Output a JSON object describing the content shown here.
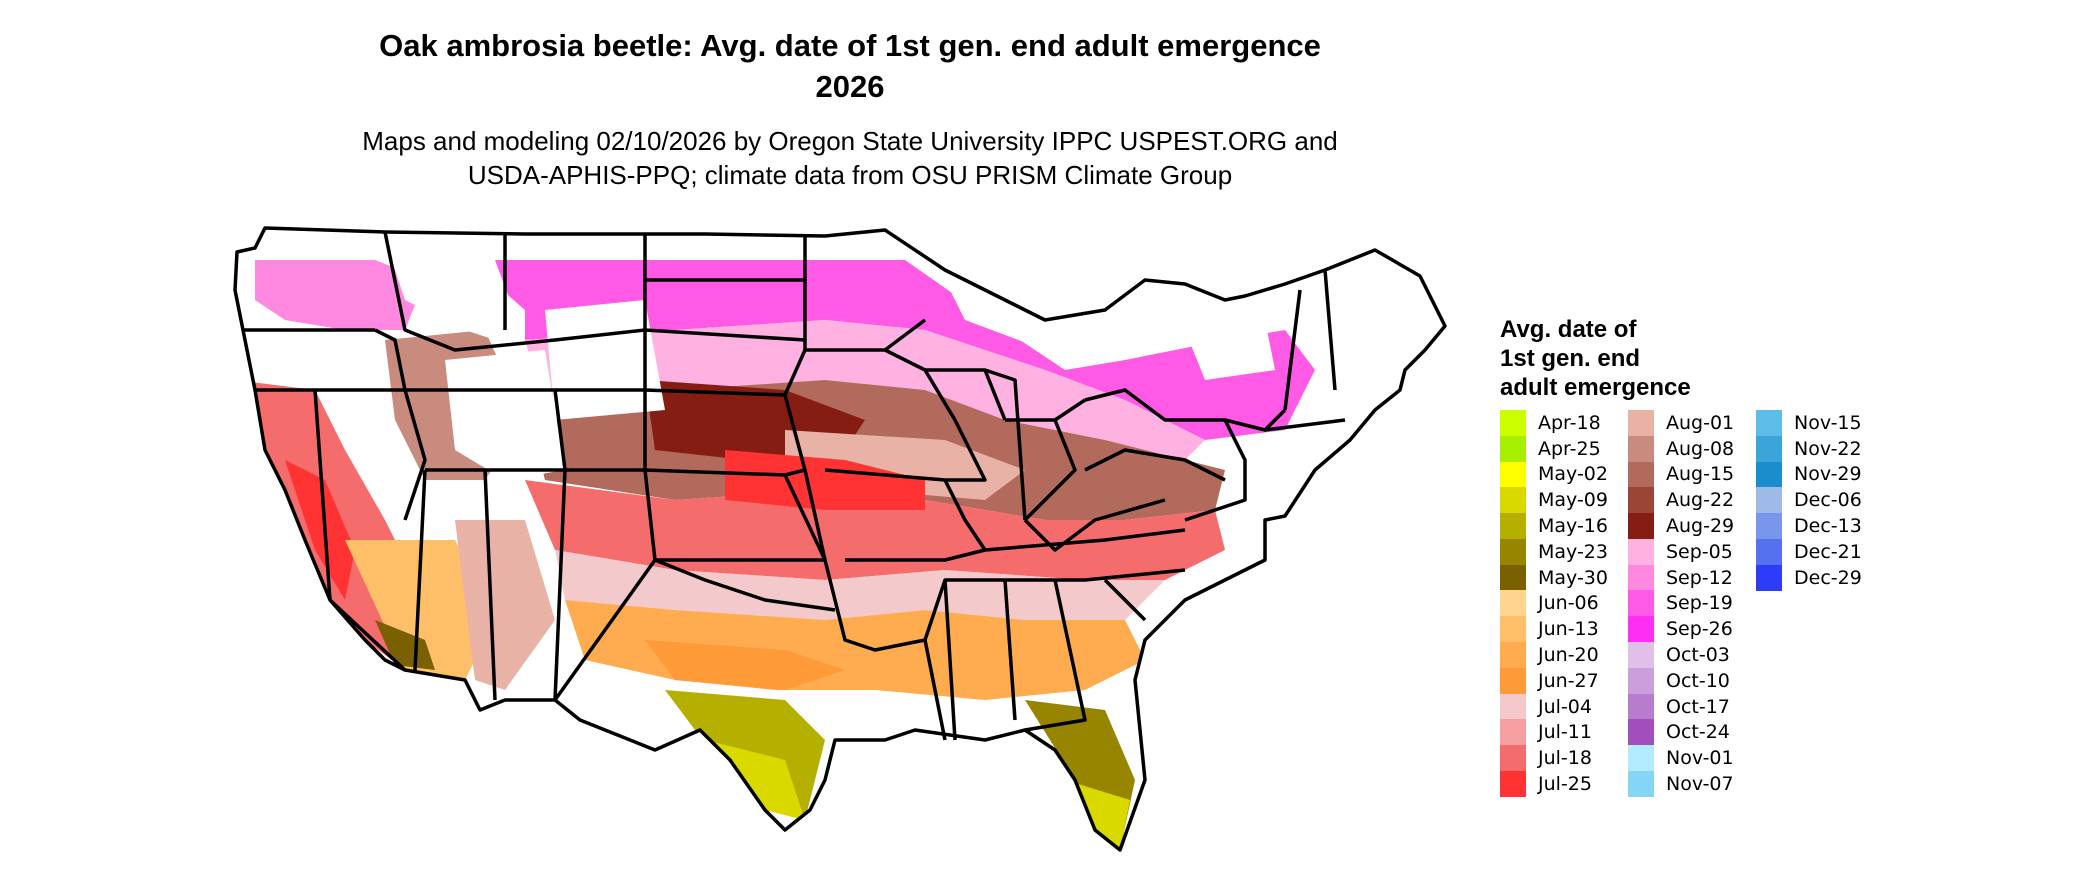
{
  "title_line1": "Oak ambrosia beetle: Avg. date of 1st gen. end adult emergence",
  "title_line2": "2026",
  "subtitle_line1": "Maps and modeling 02/10/2026 by Oregon State University IPPC USPEST.ORG and",
  "subtitle_line2": "USDA-APHIS-PPQ; climate data from OSU PRISM Climate Group",
  "legend": {
    "title_line1": "Avg. date of",
    "title_line2": "1st gen. end",
    "title_line3": "adult emergence",
    "items": [
      {
        "label": "Apr-18",
        "color": "#ccff00"
      },
      {
        "label": "Apr-25",
        "color": "#a8ee00"
      },
      {
        "label": "May-02",
        "color": "#ffff00"
      },
      {
        "label": "May-09",
        "color": "#d9d900"
      },
      {
        "label": "May-16",
        "color": "#b5b000"
      },
      {
        "label": "May-23",
        "color": "#978500"
      },
      {
        "label": "May-30",
        "color": "#7a6000"
      },
      {
        "label": "Jun-06",
        "color": "#ffd590"
      },
      {
        "label": "Jun-13",
        "color": "#ffbf68"
      },
      {
        "label": "Jun-20",
        "color": "#ffab50"
      },
      {
        "label": "Jun-27",
        "color": "#ff9a38"
      },
      {
        "label": "Jul-04",
        "color": "#f3c9cc"
      },
      {
        "label": "Jul-11",
        "color": "#f5a0a0"
      },
      {
        "label": "Jul-18",
        "color": "#f56c6c"
      },
      {
        "label": "Jul-25",
        "color": "#ff3333"
      },
      {
        "label": "Aug-01",
        "color": "#e8b2a6"
      },
      {
        "label": "Aug-08",
        "color": "#c98b7e"
      },
      {
        "label": "Aug-15",
        "color": "#b16a5b"
      },
      {
        "label": "Aug-22",
        "color": "#9a4535"
      },
      {
        "label": "Aug-29",
        "color": "#861d12"
      },
      {
        "label": "Sep-05",
        "color": "#ffb1e1"
      },
      {
        "label": "Sep-12",
        "color": "#ff88e0"
      },
      {
        "label": "Sep-19",
        "color": "#ff5ae6"
      },
      {
        "label": "Sep-26",
        "color": "#ff2ef4"
      },
      {
        "label": "Oct-03",
        "color": "#e0bfe8"
      },
      {
        "label": "Oct-10",
        "color": "#cc9edb"
      },
      {
        "label": "Oct-17",
        "color": "#b87ccf"
      },
      {
        "label": "Oct-24",
        "color": "#a24fbe"
      },
      {
        "label": "Nov-01",
        "color": "#b3ecff"
      },
      {
        "label": "Nov-07",
        "color": "#85d5f5"
      },
      {
        "label": "Nov-15",
        "color": "#5ebde8"
      },
      {
        "label": "Nov-22",
        "color": "#3ba5da"
      },
      {
        "label": "Nov-29",
        "color": "#1a8dcd"
      },
      {
        "label": "Dec-06",
        "color": "#9dbbe6"
      },
      {
        "label": "Dec-13",
        "color": "#7a96ec"
      },
      {
        "label": "Dec-21",
        "color": "#5571f0"
      },
      {
        "label": "Dec-29",
        "color": "#2e3cf8"
      }
    ]
  }
}
